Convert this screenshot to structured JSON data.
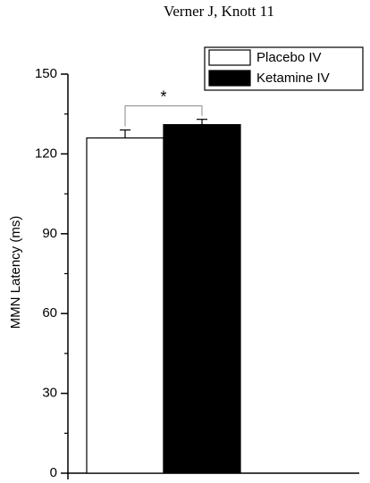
{
  "chart_data": {
    "type": "bar",
    "title": "Verner J, Knott 11",
    "ylabel": "MMN Latency (ms)",
    "categories": [
      null
    ],
    "series": [
      {
        "name": "Placebo IV",
        "color": "#ffffff",
        "values": [
          126
        ],
        "errors": [
          3
        ]
      },
      {
        "name": "Ketamine IV",
        "color": "#000000",
        "values": [
          131
        ],
        "errors": [
          2
        ]
      }
    ],
    "ylim": [
      0,
      150
    ],
    "yticks": [
      0,
      30,
      60,
      90,
      120,
      150
    ],
    "yminorticks": [
      15,
      45,
      75,
      105,
      135
    ],
    "annotation": "*",
    "legend": "upper right"
  }
}
